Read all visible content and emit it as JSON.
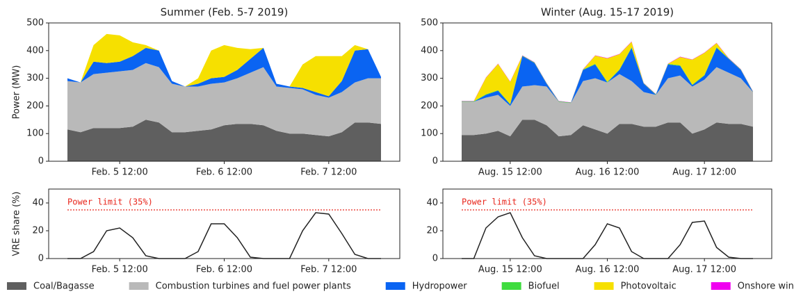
{
  "legend": [
    {
      "name": "Coal/Bagasse",
      "color": "#5f5f5f"
    },
    {
      "name": "Combustion turbines and fuel power plants",
      "color": "#b9b9b9"
    },
    {
      "name": "Hydropower",
      "color": "#0a64f2"
    },
    {
      "name": "Biofuel",
      "color": "#3fdc3f"
    },
    {
      "name": "Photovoltaic",
      "color": "#f6e000"
    },
    {
      "name": "Onshore wind",
      "color": "#f000f0"
    }
  ],
  "chart_data": [
    {
      "type": "area",
      "title": "Summer (Feb. 5-7 2019)",
      "y_label": "Power (MW)",
      "categories": [
        null,
        null,
        null,
        null,
        "Feb. 5 12:00",
        null,
        null,
        null,
        null,
        null,
        null,
        null,
        "Feb. 6 12:00",
        null,
        null,
        null,
        null,
        null,
        null,
        null,
        "Feb. 7 12:00",
        null,
        null,
        null,
        null
      ],
      "ylim": [
        0,
        500
      ],
      "yticks": [
        0,
        100,
        200,
        300,
        400,
        500
      ],
      "series": [
        {
          "values": [
            115,
            105,
            120,
            120,
            120,
            125,
            150,
            140,
            105,
            105,
            110,
            115,
            130,
            135,
            135,
            130,
            110,
            100,
            100,
            95,
            90,
            105,
            140,
            140,
            135
          ]
        },
        {
          "values": [
            175,
            180,
            195,
            200,
            205,
            205,
            205,
            200,
            175,
            165,
            160,
            165,
            155,
            165,
            185,
            210,
            160,
            165,
            160,
            145,
            140,
            145,
            145,
            160,
            165
          ]
        },
        {
          "values": [
            10,
            0,
            45,
            35,
            35,
            50,
            55,
            60,
            10,
            0,
            10,
            20,
            20,
            30,
            50,
            70,
            10,
            5,
            5,
            10,
            5,
            40,
            115,
            105,
            5
          ]
        },
        {
          "values": [
            0,
            0,
            0,
            0,
            0,
            0,
            0,
            0,
            0,
            0,
            0,
            0,
            0,
            0,
            0,
            0,
            0,
            0,
            0,
            0,
            0,
            0,
            0,
            0,
            0
          ]
        },
        {
          "values": [
            0,
            0,
            60,
            105,
            95,
            50,
            10,
            0,
            0,
            0,
            20,
            100,
            115,
            80,
            35,
            0,
            0,
            0,
            85,
            130,
            145,
            90,
            20,
            0,
            0
          ]
        },
        {
          "values": [
            0,
            0,
            0,
            0,
            0,
            0,
            0,
            0,
            0,
            0,
            0,
            0,
            0,
            0,
            0,
            0,
            0,
            0,
            0,
            0,
            0,
            0,
            0,
            0,
            0
          ]
        }
      ]
    },
    {
      "type": "area",
      "title": "Winter (Aug. 15-17 2019)",
      "categories": [
        null,
        null,
        null,
        null,
        "Aug. 15 12:00",
        null,
        null,
        null,
        null,
        null,
        null,
        null,
        "Aug. 16 12:00",
        null,
        null,
        null,
        null,
        null,
        null,
        null,
        "Aug. 17 12:00",
        null,
        null,
        null,
        null
      ],
      "ylim": [
        0,
        500
      ],
      "yticks": [
        0,
        100,
        200,
        300,
        400,
        500
      ],
      "series": [
        {
          "values": [
            95,
            95,
            100,
            110,
            90,
            150,
            150,
            130,
            90,
            95,
            130,
            115,
            100,
            135,
            135,
            125,
            125,
            140,
            140,
            100,
            115,
            140,
            135,
            135,
            125
          ]
        },
        {
          "values": [
            120,
            120,
            130,
            130,
            110,
            120,
            125,
            140,
            125,
            115,
            160,
            185,
            185,
            180,
            155,
            125,
            115,
            160,
            170,
            170,
            180,
            200,
            185,
            165,
            125
          ]
        },
        {
          "values": [
            0,
            0,
            10,
            15,
            5,
            110,
            80,
            10,
            0,
            0,
            40,
            50,
            0,
            15,
            120,
            30,
            0,
            50,
            35,
            5,
            15,
            70,
            50,
            30,
            0
          ]
        },
        {
          "values": [
            2,
            2,
            2,
            2,
            2,
            2,
            2,
            2,
            2,
            2,
            2,
            2,
            2,
            2,
            2,
            2,
            2,
            2,
            2,
            2,
            2,
            2,
            2,
            2,
            2
          ]
        },
        {
          "values": [
            0,
            0,
            60,
            95,
            80,
            0,
            0,
            0,
            0,
            0,
            0,
            30,
            85,
            55,
            20,
            0,
            0,
            0,
            30,
            90,
            80,
            15,
            0,
            0,
            0
          ]
        },
        {
          "values": [
            1,
            1,
            1,
            1,
            1,
            1,
            1,
            1,
            1,
            1,
            1,
            1,
            1,
            1,
            1,
            1,
            1,
            1,
            1,
            1,
            1,
            1,
            1,
            1,
            1
          ]
        }
      ]
    },
    {
      "type": "line",
      "y_label": "VRE share (%)",
      "categories": [
        null,
        null,
        null,
        null,
        "Feb. 5 12:00",
        null,
        null,
        null,
        null,
        null,
        null,
        null,
        "Feb. 6 12:00",
        null,
        null,
        null,
        null,
        null,
        null,
        null,
        "Feb. 7 12:00",
        null,
        null,
        null,
        null
      ],
      "ylim": [
        0,
        50
      ],
      "yticks": [
        0,
        20,
        40
      ],
      "limit": 35,
      "limit_label": "Power limit (35%)",
      "color": "#222222",
      "values": [
        0,
        0,
        5,
        20,
        22,
        15,
        2,
        0,
        0,
        0,
        5,
        25,
        25,
        15,
        1,
        0,
        0,
        0,
        20,
        33,
        32,
        18,
        3,
        0,
        0
      ]
    },
    {
      "type": "line",
      "categories": [
        null,
        null,
        null,
        null,
        "Aug. 15 12:00",
        null,
        null,
        null,
        null,
        null,
        null,
        null,
        "Aug. 16 12:00",
        null,
        null,
        null,
        null,
        null,
        null,
        null,
        "Aug. 17 12:00",
        null,
        null,
        null,
        null
      ],
      "ylim": [
        0,
        50
      ],
      "yticks": [
        0,
        20,
        40
      ],
      "limit": 35,
      "limit_label": "Power limit (35%)",
      "color": "#222222",
      "values": [
        0,
        0,
        22,
        30,
        33,
        15,
        2,
        0,
        0,
        0,
        0,
        10,
        25,
        22,
        5,
        0,
        0,
        0,
        10,
        26,
        27,
        8,
        1,
        0,
        0
      ]
    }
  ]
}
